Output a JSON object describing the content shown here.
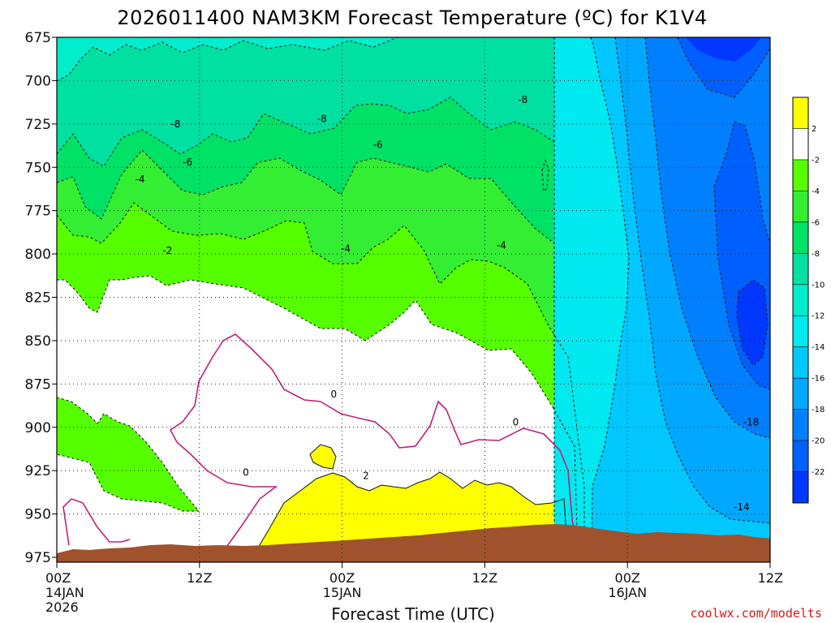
{
  "chart_data": {
    "type": "heatmap",
    "title": "2026011400 NAM3KM Forecast Temperature (ºC) for K1V4",
    "xlabel": "Forecast Time (UTC)",
    "ylabel": "",
    "credit": "coolwx.com/modelts",
    "y_axis": {
      "ticks": [
        "675",
        "700",
        "725",
        "750",
        "775",
        "800",
        "825",
        "850",
        "875",
        "900",
        "925",
        "950",
        "975"
      ],
      "ylim": [
        975,
        675
      ]
    },
    "x_axis": {
      "ticks": [
        {
          "hour": 0,
          "label": "00Z",
          "sub1": "14JAN",
          "sub2": "2026"
        },
        {
          "hour": 12,
          "label": "12Z",
          "sub1": "",
          "sub2": ""
        },
        {
          "hour": 24,
          "label": "00Z",
          "sub1": "15JAN",
          "sub2": ""
        },
        {
          "hour": 36,
          "label": "12Z",
          "sub1": "",
          "sub2": ""
        },
        {
          "hour": 48,
          "label": "00Z",
          "sub1": "16JAN",
          "sub2": ""
        },
        {
          "hour": 60,
          "label": "12Z",
          "sub1": "",
          "sub2": ""
        }
      ],
      "xlim": [
        0,
        60
      ]
    },
    "colorbar": {
      "labels": [
        "2",
        "-2",
        "-4",
        "-6",
        "-8",
        "-10",
        "-12",
        "-14",
        "-16",
        "-18",
        "-20",
        "-22"
      ],
      "bins": [
        {
          "range": "above 2",
          "color": "#ffff00"
        },
        {
          "range": "-2 to 2",
          "color": "#ffffff"
        },
        {
          "range": "-4 to -2",
          "color": "#55ff00"
        },
        {
          "range": "-6 to -4",
          "color": "#33ee33"
        },
        {
          "range": "-8 to -6",
          "color": "#00e266"
        },
        {
          "range": "-10 to -8",
          "color": "#00e0a0"
        },
        {
          "range": "-12 to -10",
          "color": "#00eecc"
        },
        {
          "range": "-14 to -12",
          "color": "#00e8f0"
        },
        {
          "range": "-16 to -14",
          "color": "#00c8ff"
        },
        {
          "range": "-18 to -16",
          "color": "#00a8ff"
        },
        {
          "range": "-20 to -18",
          "color": "#0080ff"
        },
        {
          "range": "-22 to -20",
          "color": "#0060ff"
        },
        {
          "range": "below -22",
          "color": "#0038ff"
        }
      ]
    },
    "terrain_color": "#a0522d",
    "zero_line_color": "#c0207a",
    "isotherm_labels": [
      {
        "text": "-8",
        "hour": 10.0,
        "p": 725
      },
      {
        "text": "-8",
        "hour": 22.3,
        "p": 722
      },
      {
        "text": "-8",
        "hour": 39.2,
        "p": 711
      },
      {
        "text": "-6",
        "hour": 11.0,
        "p": 747
      },
      {
        "text": "-6",
        "hour": 27.0,
        "p": 737
      },
      {
        "text": "-4",
        "hour": 7.0,
        "p": 757
      },
      {
        "text": "-4",
        "hour": 24.3,
        "p": 797
      },
      {
        "text": "-4",
        "hour": 37.4,
        "p": 795
      },
      {
        "text": "-2",
        "hour": 9.3,
        "p": 798
      },
      {
        "text": "0",
        "hour": 23.3,
        "p": 881
      },
      {
        "text": "0",
        "hour": 15.9,
        "p": 926
      },
      {
        "text": "0",
        "hour": 38.6,
        "p": 897
      },
      {
        "text": "2",
        "hour": 26.0,
        "p": 928
      },
      {
        "text": "-18",
        "hour": 58.4,
        "p": 897
      },
      {
        "text": "-14",
        "hour": 57.6,
        "p": 946
      }
    ]
  }
}
